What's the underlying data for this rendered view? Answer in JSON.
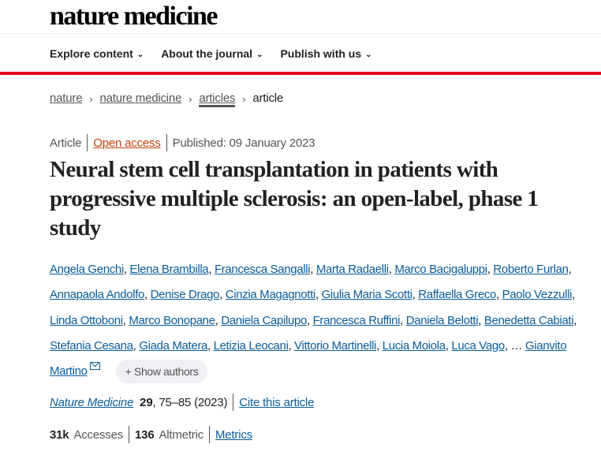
{
  "header": {
    "logo": "nature medicine",
    "nav": [
      "Explore content",
      "About the journal",
      "Publish with us"
    ]
  },
  "breadcrumb": [
    "nature",
    "nature medicine",
    "articles",
    "article"
  ],
  "meta": {
    "type": "Article",
    "access": "Open access",
    "published": "Published: 09 January 2023"
  },
  "title": "Neural stem cell transplantation in patients with progressive multiple sclerosis: an open-label, phase 1 study",
  "authors": [
    "Angela Genchi",
    "Elena Brambilla",
    "Francesca Sangalli",
    "Marta Radaelli",
    "Marco Bacigaluppi",
    "Roberto Furlan",
    "Annapaola Andolfo",
    "Denise Drago",
    "Cinzia Magagnotti",
    "Giulia Maria Scotti",
    "Raffaella Greco",
    "Paolo Vezzulli",
    "Linda Ottoboni",
    "Marco Bonopane",
    "Daniela Capilupo",
    "Francesca Ruffini",
    "Daniela Belotti",
    "Benedetta Cabiati",
    "Stefania Cesana",
    "Giada Matera",
    "Letizia Leocani",
    "Vittorio Martinelli",
    "Lucia Moiola",
    "Luca Vago"
  ],
  "last_author": "Gianvito Martino",
  "ellipsis": "…",
  "show_authors": "Show authors",
  "citation": {
    "journal": "Nature Medicine",
    "volume": "29",
    "pages": ", 75–85 (2023)",
    "cite": "Cite this article"
  },
  "stats": {
    "accesses_value": "31k",
    "accesses_label": "Accesses",
    "altmetric_value": "136",
    "altmetric_label": "Altmetric",
    "metrics": "Metrics"
  },
  "colors": {
    "accent": "#e3001b",
    "link": "#0a5c9c",
    "open_access": "#c0420a"
  }
}
